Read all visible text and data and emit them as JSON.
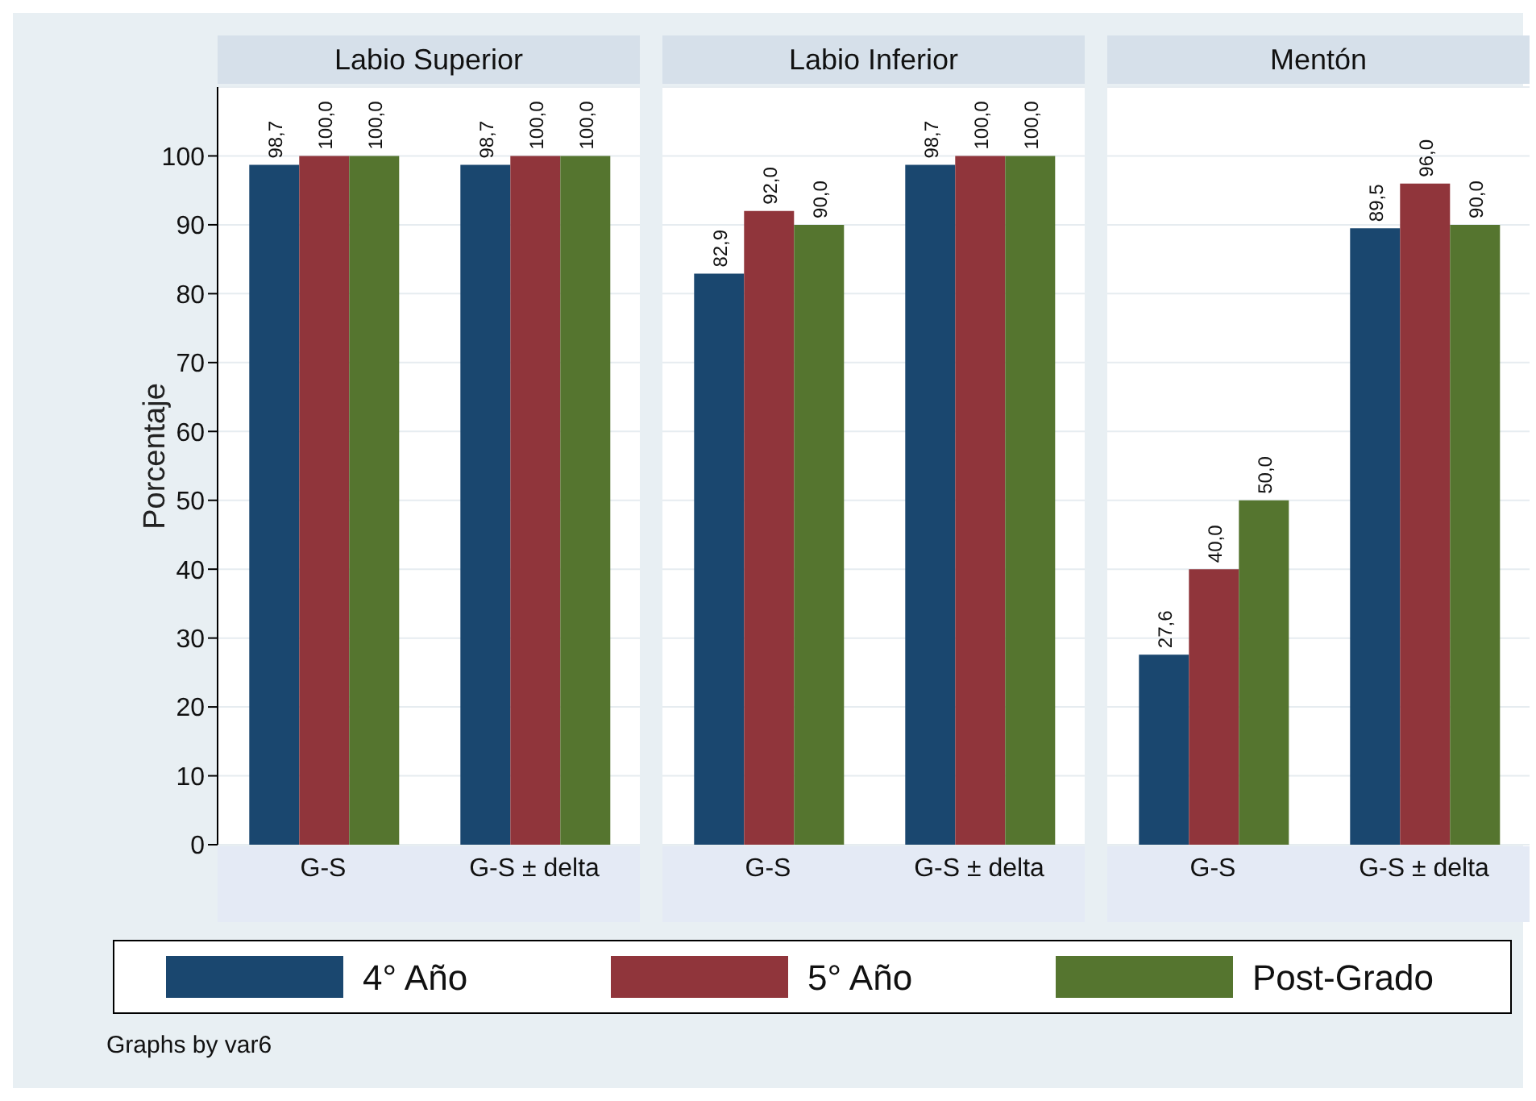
{
  "chart_data": [
    {
      "type": "bar",
      "title": "Labio Superior",
      "ylabel": "Porcentaje",
      "categories": [
        "G-S",
        "G-S ± delta"
      ],
      "ylim": [
        0,
        110
      ],
      "yticks": [
        0,
        10,
        20,
        30,
        40,
        50,
        60,
        70,
        80,
        90,
        100
      ],
      "grid": "y",
      "legend": "bottom",
      "annotations": [
        "Graphs by var6"
      ],
      "series": [
        {
          "name": "4° Año",
          "color": "#1a476f",
          "values": [
            98.7,
            98.7
          ],
          "value_labels": [
            "98,7",
            "98,7"
          ]
        },
        {
          "name": "5° Año",
          "color": "#90353b",
          "values": [
            100,
            100
          ],
          "value_labels": [
            "100,0",
            "100,0"
          ]
        },
        {
          "name": "Post-Grado",
          "color": "#55752f",
          "values": [
            100,
            100
          ],
          "value_labels": [
            "100,0",
            "100,0"
          ]
        }
      ]
    },
    {
      "type": "bar",
      "title": "Labio Inferior",
      "categories": [
        "G-S",
        "G-S ± delta"
      ],
      "ylim": [
        0,
        110
      ],
      "yticks": [
        0,
        10,
        20,
        30,
        40,
        50,
        60,
        70,
        80,
        90,
        100
      ],
      "grid": "y",
      "tick_labels": "x",
      "series": [
        {
          "color": "#1a476f",
          "values": [
            82.9,
            98.7
          ],
          "value_labels": [
            "82,9",
            "98,7"
          ]
        },
        {
          "color": "#90353b",
          "values": [
            92.0,
            100
          ],
          "value_labels": [
            "92,0",
            "100,0"
          ]
        },
        {
          "color": "#55752f",
          "values": [
            90.0,
            100
          ],
          "value_labels": [
            "90,0",
            "100,0"
          ]
        }
      ]
    },
    {
      "type": "bar",
      "title": "Mentón",
      "categories": [
        "G-S",
        "G-S ± delta"
      ],
      "ylim": [
        0,
        110
      ],
      "yticks": [
        0,
        10,
        20,
        30,
        40,
        50,
        60,
        70,
        80,
        90,
        100
      ],
      "grid": "y",
      "tick_labels": "x",
      "series": [
        {
          "color": "#1a476f",
          "values": [
            27.6,
            89.5
          ],
          "value_labels": [
            "27,6",
            "89,5"
          ]
        },
        {
          "color": "#90353b",
          "values": [
            40.0,
            96.0
          ],
          "value_labels": [
            "40,0",
            "96,0"
          ]
        },
        {
          "color": "#55752f",
          "values": [
            50.0,
            90.0
          ],
          "value_labels": [
            "50,0",
            "90,0"
          ]
        }
      ]
    }
  ]
}
